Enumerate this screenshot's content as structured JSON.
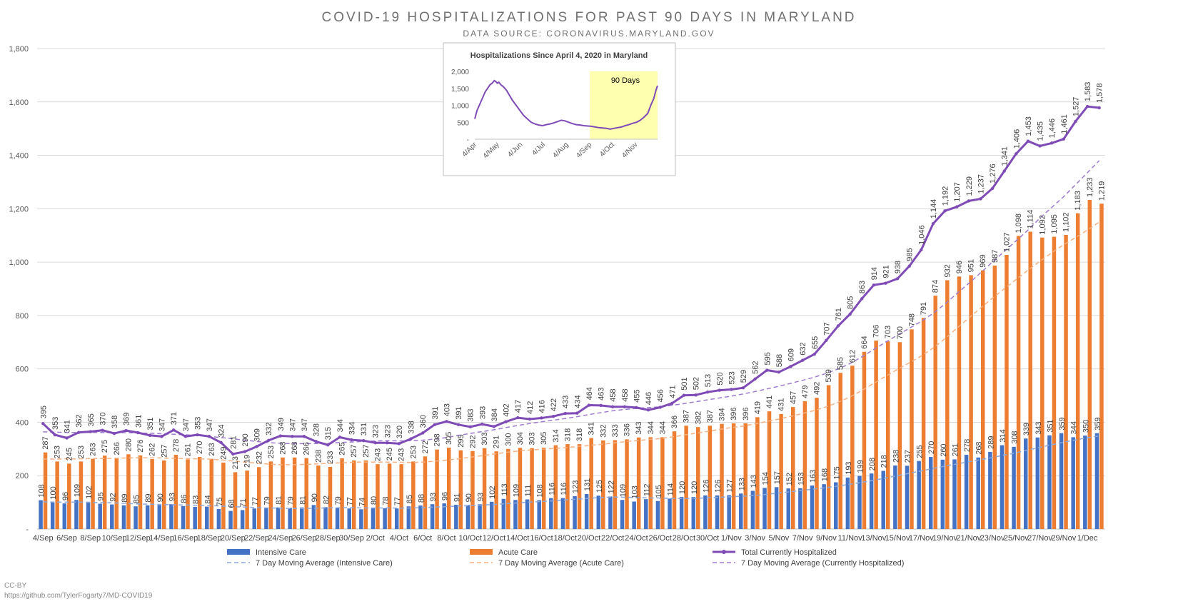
{
  "title": "COVID-19 HOSPITALIZATIONS FOR PAST 90 DAYS IN MARYLAND",
  "subtitle": "DATA SOURCE: CORONAVIRUS.MARYLAND.GOV",
  "credit_license": "CC-BY",
  "credit_url": "https://github.com/TylerFogarty7/MD-COVID19",
  "colors": {
    "icu": "#4472C4",
    "acute": "#ED7D31",
    "total": "#7F4BB7",
    "icu_ma": "#8EA9DB",
    "acute_ma": "#F4B183",
    "total_ma": "#9E7BCE",
    "grid": "#D9D9D9",
    "label": "#404040",
    "highlight": "#FFFFB0"
  },
  "chart_data": [
    {
      "type": "bar",
      "ylim": [
        0,
        1800
      ],
      "y_ticks": [
        0,
        200,
        400,
        600,
        800,
        1000,
        1200,
        1400,
        1600,
        1800
      ],
      "y_tick_labels": [
        "-",
        "200",
        "400",
        "600",
        "800",
        "1,000",
        "1,200",
        "1,400",
        "1,600",
        "1,800"
      ],
      "grid": true,
      "legend_position": "bottom",
      "x_tick_labels": [
        "4/Sep",
        "6/Sep",
        "8/Sep",
        "10/Sep",
        "12/Sep",
        "14/Sep",
        "16/Sep",
        "18/Sep",
        "20/Sep",
        "22/Sep",
        "24/Sep",
        "26/Sep",
        "28/Sep",
        "30/Sep",
        "2/Oct",
        "4/Oct",
        "6/Oct",
        "8/Oct",
        "10/Oct",
        "12/Oct",
        "14/Oct",
        "16/Oct",
        "18/Oct",
        "20/Oct",
        "22/Oct",
        "24/Oct",
        "26/Oct",
        "28/Oct",
        "30/Oct",
        "1/Nov",
        "3/Nov",
        "5/Nov",
        "7/Nov",
        "9/Nov",
        "11/Nov",
        "13/Nov",
        "15/Nov",
        "17/Nov",
        "19/Nov",
        "21/Nov",
        "23/Nov",
        "25/Nov",
        "27/Nov",
        "29/Nov",
        "1/Dec"
      ],
      "series": [
        {
          "name": "Intensive Care",
          "kind": "bar",
          "values": [
            108,
            100,
            96,
            109,
            102,
            95,
            92,
            89,
            85,
            89,
            90,
            93,
            86,
            83,
            84,
            75,
            68,
            71,
            77,
            79,
            81,
            79,
            81,
            90,
            82,
            79,
            77,
            74,
            80,
            78,
            77,
            85,
            88,
            93,
            96,
            91,
            90,
            93,
            102,
            113,
            109,
            111,
            108,
            116,
            116,
            123,
            131,
            125,
            122,
            109,
            103,
            112,
            105,
            114,
            120,
            120,
            126,
            126,
            127,
            133,
            143,
            154,
            157,
            152,
            153,
            163,
            168,
            175,
            193,
            199,
            208,
            218,
            238,
            237,
            255,
            270,
            260,
            261,
            278,
            268,
            289,
            314,
            308,
            339,
            343,
            351,
            359,
            344,
            350,
            359
          ],
          "labels": [
            "108",
            "100",
            "96",
            "109",
            "102",
            "95",
            "92",
            "89",
            "85",
            "89",
            "90",
            "93",
            "86",
            "83",
            "84",
            "75",
            "68",
            "71",
            "77",
            "79",
            "81",
            "79",
            "81",
            "90",
            "82",
            "79",
            "77",
            "74",
            "80",
            "78",
            "77",
            "85",
            "88",
            "93",
            "96",
            "91",
            "90",
            "93",
            "102",
            "113",
            "109",
            "111",
            "108",
            "116",
            "116",
            "123",
            "131",
            "125",
            "122",
            "109",
            "103",
            "112",
            "105",
            "114",
            "120",
            "120",
            "126",
            "126",
            "127",
            "133",
            "143",
            "154",
            "157",
            "152",
            "153",
            "163",
            "168",
            "175",
            "193",
            "199",
            "208",
            "218",
            "238",
            "237",
            "255",
            "270",
            "260",
            "261",
            "278",
            "268",
            "289",
            "314",
            "308",
            "339",
            "343",
            "351",
            "359",
            "344",
            "350",
            "359"
          ]
        },
        {
          "name": "Acute Care",
          "kind": "bar",
          "values": [
            287,
            253,
            245,
            253,
            263,
            275,
            266,
            280,
            276,
            262,
            257,
            278,
            261,
            270,
            263,
            249,
            213,
            219,
            232,
            253,
            268,
            268,
            266,
            238,
            233,
            265,
            257,
            257,
            243,
            245,
            243,
            253,
            272,
            298,
            305,
            295,
            292,
            303,
            291,
            300,
            304,
            303,
            305,
            314,
            318,
            318,
            341,
            332,
            333,
            336,
            343,
            344,
            344,
            366,
            387,
            382,
            387,
            394,
            396,
            396,
            419,
            441,
            431,
            457,
            479,
            492,
            539,
            585,
            612,
            664,
            706,
            703,
            700,
            748,
            791,
            874,
            932,
            946,
            951,
            969,
            987,
            1027,
            1098,
            1114,
            1092,
            1095,
            1102,
            1183,
            1233,
            1219
          ],
          "labels": [
            "287",
            "253",
            "245",
            "253",
            "263",
            "275",
            "266",
            "280",
            "276",
            "262",
            "257",
            "278",
            "261",
            "270",
            "263",
            "249",
            "213",
            "219",
            "232",
            "253",
            "268",
            "268",
            "266",
            "238",
            "233",
            "265",
            "257",
            "257",
            "243",
            "245",
            "243",
            "253",
            "272",
            "298",
            "305",
            "295",
            "292",
            "303",
            "291",
            "300",
            "304",
            "303",
            "305",
            "314",
            "318",
            "318",
            "341",
            "332",
            "333",
            "336",
            "343",
            "344",
            "344",
            "366",
            "387",
            "382",
            "387",
            "394",
            "396",
            "396",
            "419",
            "441",
            "431",
            "457",
            "479",
            "492",
            "539",
            "585",
            "612",
            "664",
            "706",
            "703",
            "700",
            "748",
            "791",
            "874",
            "932",
            "946",
            "951",
            "969",
            "987",
            "1,027",
            "1,098",
            "1,114",
            "1,092",
            "1,095",
            "1,102",
            "1,183",
            "1,233",
            "1,219"
          ]
        },
        {
          "name": "Total Currently Hospitalized",
          "kind": "line",
          "values": [
            395,
            353,
            341,
            362,
            365,
            370,
            358,
            369,
            361,
            351,
            347,
            371,
            347,
            353,
            347,
            324,
            281,
            290,
            309,
            332,
            349,
            347,
            347,
            328,
            315,
            344,
            334,
            331,
            323,
            323,
            320,
            338,
            360,
            391,
            403,
            391,
            383,
            393,
            384,
            402,
            417,
            412,
            416,
            422,
            433,
            434,
            464,
            463,
            458,
            458,
            455,
            446,
            456,
            471,
            501,
            502,
            513,
            520,
            523,
            529,
            562,
            595,
            588,
            609,
            632,
            655,
            707,
            761,
            805,
            863,
            914,
            921,
            938,
            985,
            1046,
            1144,
            1192,
            1207,
            1229,
            1237,
            1276,
            1341,
            1406,
            1453,
            1435,
            1446,
            1461,
            1527,
            1583,
            1578
          ],
          "labels": [
            "395",
            "353",
            "341",
            "362",
            "365",
            "370",
            "358",
            "369",
            "361",
            "351",
            "347",
            "371",
            "347",
            "353",
            "347",
            "324",
            "281",
            "290",
            "309",
            "332",
            "349",
            "347",
            "347",
            "328",
            "315",
            "344",
            "334",
            "331",
            "323",
            "323",
            "320",
            "338",
            "360",
            "391",
            "403",
            "391",
            "383",
            "393",
            "384",
            "402",
            "417",
            "412",
            "416",
            "422",
            "433",
            "434",
            "464",
            "463",
            "458",
            "458",
            "455",
            "446",
            "456",
            "471",
            "501",
            "502",
            "513",
            "520",
            "523",
            "529",
            "562",
            "595",
            "588",
            "609",
            "632",
            "655",
            "707",
            "761",
            "805",
            "863",
            "914",
            "921",
            "938",
            "985",
            "1,046",
            "1,144",
            "1,192",
            "1,207",
            "1,229",
            "1,237",
            "1,276",
            "1,341",
            "1,406",
            "1,453",
            "1,435",
            "1,446",
            "1,461",
            "1,527",
            "1,583",
            "1,578"
          ]
        },
        {
          "name": "7 Day Moving Average (Intensive Care)",
          "kind": "dashed-line",
          "values": [
            102,
            101,
            101,
            101,
            100,
            99,
            98,
            96,
            94,
            93,
            92,
            91,
            90,
            89,
            88,
            86,
            84,
            82,
            80,
            79,
            78,
            77,
            77,
            78,
            79,
            80,
            80,
            79,
            79,
            79,
            78,
            79,
            80,
            82,
            84,
            86,
            88,
            90,
            92,
            95,
            98,
            101,
            103,
            106,
            109,
            112,
            115,
            118,
            120,
            119,
            118,
            117,
            116,
            115,
            114,
            115,
            117,
            119,
            121,
            123,
            126,
            130,
            135,
            140,
            145,
            150,
            155,
            161,
            168,
            175,
            183,
            191,
            200,
            209,
            218,
            227,
            236,
            244,
            252,
            260,
            268,
            277,
            286,
            296,
            306,
            316,
            325,
            334,
            342,
            349
          ]
        },
        {
          "name": "7 Day Moving Average (Acute Care)",
          "kind": "dashed-line",
          "values": [
            262,
            262,
            263,
            263,
            264,
            264,
            265,
            266,
            267,
            267,
            266,
            265,
            264,
            263,
            262,
            259,
            255,
            251,
            247,
            243,
            241,
            241,
            242,
            244,
            246,
            248,
            250,
            251,
            251,
            251,
            250,
            249,
            251,
            254,
            258,
            263,
            269,
            275,
            281,
            287,
            292,
            296,
            299,
            302,
            305,
            309,
            313,
            317,
            322,
            327,
            331,
            335,
            339,
            345,
            352,
            359,
            366,
            373,
            380,
            386,
            394,
            403,
            412,
            422,
            433,
            444,
            458,
            475,
            495,
            519,
            546,
            572,
            598,
            623,
            648,
            678,
            713,
            752,
            790,
            828,
            865,
            900,
            935,
            970,
            1003,
            1035,
            1065,
            1092,
            1120,
            1150
          ]
        },
        {
          "name": "7 Day Moving Average (Currently Hospitalized)",
          "kind": "dashed-line",
          "values": [
            364,
            363,
            362,
            362,
            362,
            362,
            361,
            361,
            360,
            359,
            357,
            355,
            353,
            350,
            347,
            343,
            338,
            333,
            328,
            324,
            321,
            320,
            320,
            320,
            322,
            324,
            326,
            328,
            330,
            331,
            330,
            331,
            333,
            337,
            343,
            351,
            358,
            365,
            372,
            380,
            388,
            395,
            402,
            408,
            414,
            421,
            429,
            436,
            443,
            448,
            452,
            455,
            458,
            463,
            470,
            477,
            484,
            491,
            498,
            506,
            515,
            525,
            535,
            546,
            557,
            569,
            583,
            600,
            620,
            645,
            673,
            700,
            727,
            752,
            778,
            808,
            843,
            882,
            920,
            960,
            1000,
            1040,
            1080,
            1120,
            1165,
            1205,
            1245,
            1290,
            1335,
            1380
          ]
        }
      ]
    },
    {
      "type": "line",
      "title": "Hospitalizations Since April 4, 2020 in Maryland",
      "ylim": [
        0,
        2000
      ],
      "y_ticks": [
        0,
        500,
        1000,
        1500,
        2000
      ],
      "y_tick_labels": [
        "-",
        "500",
        "1,000",
        "1,500",
        "2,000"
      ],
      "x_tick_labels": [
        "4/Apr",
        "4/May",
        "4/Jun",
        "4/Jul",
        "4/Aug",
        "4/Sep",
        "4/Oct",
        "4/Nov"
      ],
      "highlight_label": "90 Days",
      "highlight_range_days": [
        153,
        243
      ],
      "series": [
        {
          "name": "Total Currently Hospitalized",
          "x_days": [
            0,
            3,
            7,
            10,
            14,
            17,
            20,
            23,
            26,
            28,
            30,
            32,
            35,
            38,
            42,
            46,
            50,
            55,
            60,
            65,
            70,
            75,
            80,
            85,
            90,
            95,
            100,
            105,
            110,
            115,
            120,
            125,
            130,
            135,
            140,
            145,
            150,
            155,
            160,
            165,
            170,
            175,
            180,
            185,
            190,
            195,
            200,
            205,
            210,
            215,
            220,
            225,
            230,
            234,
            238,
            241,
            243
          ],
          "values": [
            600,
            850,
            1050,
            1200,
            1400,
            1500,
            1600,
            1650,
            1730,
            1700,
            1650,
            1680,
            1600,
            1550,
            1450,
            1300,
            1150,
            1000,
            850,
            700,
            600,
            500,
            450,
            420,
            400,
            430,
            450,
            480,
            520,
            560,
            540,
            500,
            460,
            430,
            420,
            400,
            390,
            380,
            360,
            340,
            330,
            320,
            300,
            320,
            340,
            360,
            400,
            430,
            470,
            500,
            560,
            650,
            760,
            1000,
            1200,
            1450,
            1580
          ]
        }
      ]
    }
  ]
}
